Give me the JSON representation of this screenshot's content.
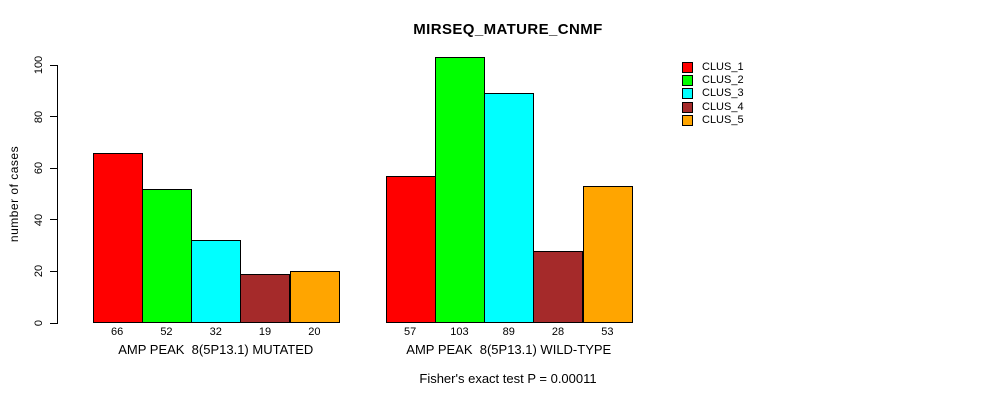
{
  "title": "MIRSEQ_MATURE_CNMF",
  "y_axis": {
    "label": "number of cases",
    "ticks": [
      "0",
      "20",
      "40",
      "60",
      "80",
      "100"
    ]
  },
  "footer": "Fisher's exact test P = 0.00011",
  "legend": {
    "items": [
      {
        "label": "CLUS_1",
        "color": "#ff0000"
      },
      {
        "label": "CLUS_2",
        "color": "#00ff00"
      },
      {
        "label": "CLUS_3",
        "color": "#00ffff"
      },
      {
        "label": "CLUS_4",
        "color": "#a52a2a"
      },
      {
        "label": "CLUS_5",
        "color": "#ffa500"
      }
    ]
  },
  "chart_data": {
    "type": "bar",
    "title": "MIRSEQ_MATURE_CNMF",
    "xlabel": "",
    "ylabel": "number of cases",
    "ylim": [
      0,
      103
    ],
    "yticks": [
      0,
      20,
      40,
      60,
      80,
      100
    ],
    "grid": false,
    "legend_position": "right",
    "categories": [
      "AMP PEAK  8(5P13.1) MUTATED",
      "AMP PEAK  8(5P13.1) WILD-TYPE"
    ],
    "series": [
      {
        "name": "CLUS_1",
        "color": "#ff0000",
        "values": [
          66,
          57
        ]
      },
      {
        "name": "CLUS_2",
        "color": "#00ff00",
        "values": [
          52,
          103
        ]
      },
      {
        "name": "CLUS_3",
        "color": "#00ffff",
        "values": [
          32,
          89
        ]
      },
      {
        "name": "CLUS_4",
        "color": "#a52a2a",
        "values": [
          19,
          28
        ]
      },
      {
        "name": "CLUS_5",
        "color": "#ffa500",
        "values": [
          20,
          53
        ]
      }
    ],
    "bar_value_labels": [
      [
        66,
        52,
        32,
        19,
        20
      ],
      [
        57,
        103,
        89,
        28,
        53
      ]
    ],
    "annotation": "Fisher's exact test P = 0.00011"
  }
}
